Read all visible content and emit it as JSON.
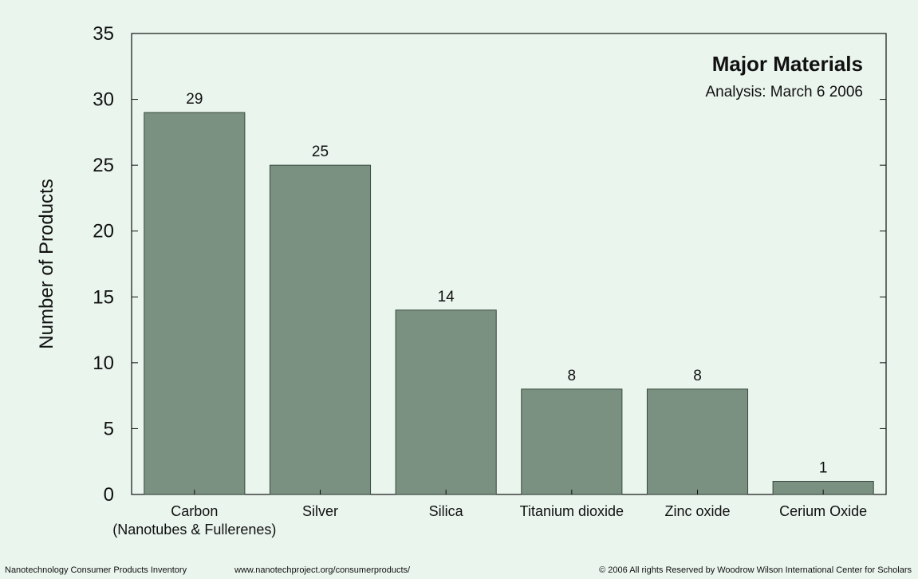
{
  "chart_data": {
    "type": "bar",
    "title": "Major Materials",
    "subtitle": "Analysis: March 6 2006",
    "xlabel": "",
    "ylabel": "Number of Products",
    "categories": [
      "Carbon\n(Nanotubes & Fullerenes)",
      "Silver",
      "Silica",
      "Titanium dioxide",
      "Zinc oxide",
      "Cerium Oxide"
    ],
    "values": [
      29,
      25,
      14,
      8,
      8,
      1
    ],
    "data_labels": [
      "29",
      "25",
      "14",
      "8",
      "8",
      "1"
    ],
    "ylim": [
      0,
      35
    ],
    "yticks": [
      0,
      5,
      10,
      15,
      20,
      25,
      30,
      35
    ],
    "grid": false,
    "colors": {
      "bar": "#7a9080",
      "bar_edge": "#3a4a40",
      "background": "#eaf5ee",
      "axis": "#111111"
    }
  },
  "footer": {
    "inventory": "Nanotechnology Consumer Products Inventory",
    "url": "www.nanotechproject.org/consumerproducts/",
    "copyright": "© 2006 All rights Reserved by Woodrow Wilson International Center for Scholars"
  }
}
